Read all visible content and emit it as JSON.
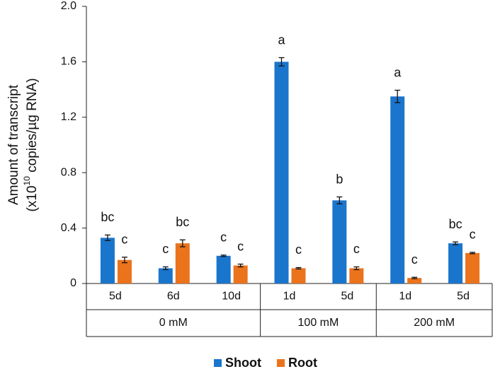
{
  "chart_data": {
    "type": "bar",
    "y_label": {
      "line1": "Amount of transcript",
      "line2_pre": "(x10",
      "line2_sup": "10",
      "line2_post": " copies/µg RNA)"
    },
    "categories": [
      "5d",
      "6d",
      "10d",
      "1d",
      "5d",
      "1d",
      "5d"
    ],
    "groups": [
      {
        "name": "0 mM",
        "count": 3
      },
      {
        "name": "100 mM",
        "count": 2
      },
      {
        "name": "200 mM",
        "count": 2
      }
    ],
    "series": [
      {
        "name": "Shoot",
        "color": "#1a75cc",
        "values": [
          0.33,
          0.11,
          0.2,
          1.6,
          0.6,
          1.35,
          0.29
        ],
        "errors": [
          0.02,
          0.01,
          0.005,
          0.03,
          0.025,
          0.045,
          0.01
        ],
        "letters": [
          "bc",
          "c",
          "c",
          "a",
          "b",
          "a",
          "bc"
        ]
      },
      {
        "name": "Root",
        "color": "#ea731c",
        "values": [
          0.17,
          0.29,
          0.13,
          0.11,
          0.11,
          0.04,
          0.22
        ],
        "errors": [
          0.02,
          0.025,
          0.01,
          0.005,
          0.01,
          0.005,
          0.005
        ],
        "letters": [
          "c",
          "bc",
          "c",
          "c",
          "c",
          "c",
          "c"
        ]
      }
    ],
    "ylim": [
      0,
      2
    ],
    "yticks": [
      0,
      0.4,
      0.8,
      1.2,
      1.6,
      {
        "value": 2,
        "label": "2.0"
      }
    ],
    "grid": false,
    "legend": "bottom"
  }
}
